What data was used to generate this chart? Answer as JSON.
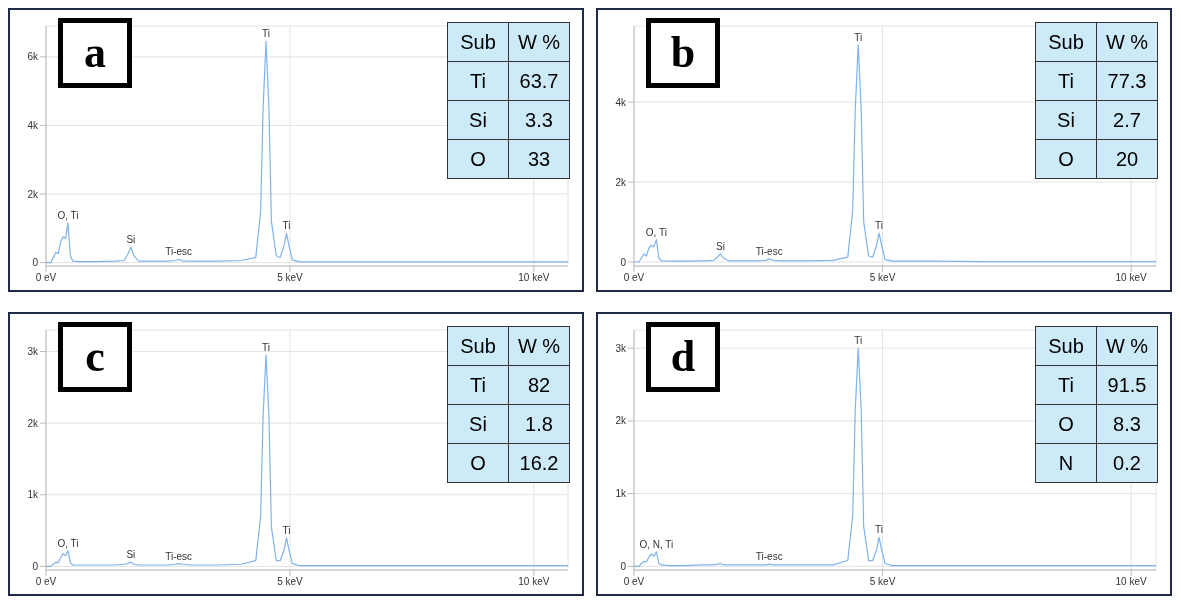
{
  "chart_data": [
    {
      "type": "line",
      "title": "a",
      "x": [
        0,
        0.1,
        0.15,
        0.2,
        0.25,
        0.3,
        0.35,
        0.4,
        0.45,
        0.5,
        0.55,
        0.7,
        1.0,
        1.4,
        1.6,
        1.68,
        1.74,
        1.8,
        1.9,
        2.2,
        2.5,
        2.65,
        2.72,
        2.8,
        3.0,
        3.5,
        4.0,
        4.3,
        4.4,
        4.45,
        4.51,
        4.57,
        4.62,
        4.72,
        4.8,
        4.88,
        4.93,
        4.98,
        5.05,
        5.2,
        6,
        7,
        8,
        9,
        10,
        10.7
      ],
      "series": [
        {
          "color": "#7fb3ea",
          "values": [
            0,
            0,
            150,
            300,
            250,
            600,
            750,
            700,
            1150,
            200,
            40,
            30,
            30,
            40,
            60,
            250,
            450,
            200,
            40,
            40,
            40,
            60,
            90,
            50,
            40,
            40,
            60,
            150,
            1500,
            4500,
            6450,
            4500,
            1200,
            200,
            150,
            500,
            850,
            500,
            80,
            20,
            20,
            20,
            20,
            20,
            20,
            20
          ]
        }
      ],
      "xlim": [
        0,
        10.7
      ],
      "xticks": [
        {
          "value": 0,
          "label": "0 eV"
        },
        {
          "value": 5,
          "label": "5 keV"
        },
        {
          "value": 10,
          "label": "10 keV"
        }
      ],
      "ylim": [
        -100,
        6900
      ],
      "yticks": [
        {
          "value": 0,
          "label": "0"
        },
        {
          "value": 2000,
          "label": "2k"
        },
        {
          "value": 4000,
          "label": "4k"
        },
        {
          "value": 6000,
          "label": "6k"
        }
      ],
      "grid": true,
      "annotations": [
        {
          "text": "O, Ti",
          "x": 0.45,
          "y": 1150
        },
        {
          "text": "Si",
          "x": 1.74,
          "y": 450
        },
        {
          "text": "Ti-esc",
          "x": 2.72,
          "y": 90
        },
        {
          "text": "Ti",
          "x": 4.51,
          "y": 6450
        },
        {
          "text": "Ti",
          "x": 4.93,
          "y": 850
        },
        "Sub",
        "W %",
        "Ti",
        "63.7",
        "Si",
        "3.3",
        "O",
        "33"
      ]
    },
    {
      "type": "line",
      "title": "b",
      "x": [
        0,
        0.1,
        0.15,
        0.2,
        0.25,
        0.3,
        0.35,
        0.4,
        0.45,
        0.5,
        0.55,
        0.7,
        1.0,
        1.4,
        1.6,
        1.68,
        1.74,
        1.8,
        1.9,
        2.2,
        2.5,
        2.65,
        2.72,
        2.8,
        3.0,
        3.5,
        4.0,
        4.3,
        4.4,
        4.45,
        4.51,
        4.57,
        4.62,
        4.72,
        4.8,
        4.88,
        4.93,
        4.98,
        5.05,
        5.2,
        6,
        7,
        8,
        9,
        10,
        10.5
      ],
      "series": [
        {
          "color": "#7fb3ea",
          "values": [
            0,
            0,
            100,
            200,
            150,
            350,
            420,
            380,
            560,
            100,
            30,
            20,
            20,
            30,
            40,
            120,
            200,
            100,
            30,
            30,
            30,
            40,
            80,
            40,
            30,
            30,
            40,
            120,
            1300,
            3800,
            5430,
            3800,
            1000,
            150,
            120,
            420,
            720,
            420,
            60,
            20,
            20,
            10,
            10,
            10,
            10,
            10
          ]
        }
      ],
      "xlim": [
        0,
        10.5
      ],
      "xticks": [
        {
          "value": 0,
          "label": "0 eV"
        },
        {
          "value": 5,
          "label": "5 keV"
        },
        {
          "value": 10,
          "label": "10 keV"
        }
      ],
      "ylim": [
        -100,
        5900
      ],
      "yticks": [
        {
          "value": 0,
          "label": "0"
        },
        {
          "value": 2000,
          "label": "2k"
        },
        {
          "value": 4000,
          "label": "4k"
        }
      ],
      "grid": true,
      "annotations": [
        {
          "text": "O, Ti",
          "x": 0.45,
          "y": 560
        },
        {
          "text": "Si",
          "x": 1.74,
          "y": 200
        },
        {
          "text": "Ti-esc",
          "x": 2.72,
          "y": 80
        },
        {
          "text": "Ti",
          "x": 4.51,
          "y": 5430
        },
        {
          "text": "Ti",
          "x": 4.93,
          "y": 720
        },
        "Sub",
        "W %",
        "Ti",
        "77.3",
        "Si",
        "2.7",
        "O",
        "20"
      ]
    },
    {
      "type": "line",
      "title": "c",
      "x": [
        0,
        0.1,
        0.15,
        0.2,
        0.25,
        0.3,
        0.35,
        0.4,
        0.45,
        0.5,
        0.55,
        0.7,
        1.0,
        1.4,
        1.6,
        1.68,
        1.74,
        1.8,
        1.9,
        2.2,
        2.5,
        2.65,
        2.72,
        2.8,
        3.0,
        3.5,
        4.0,
        4.3,
        4.4,
        4.45,
        4.51,
        4.57,
        4.62,
        4.72,
        4.8,
        4.88,
        4.93,
        4.98,
        5.05,
        5.2,
        6,
        7,
        8,
        9,
        10,
        10.7
      ],
      "series": [
        {
          "color": "#7fb3ea",
          "values": [
            0,
            0,
            30,
            60,
            50,
            120,
            180,
            150,
            220,
            50,
            20,
            20,
            20,
            20,
            30,
            40,
            60,
            30,
            20,
            20,
            20,
            30,
            40,
            30,
            20,
            20,
            30,
            80,
            700,
            2100,
            2950,
            2100,
            550,
            80,
            80,
            230,
            400,
            230,
            40,
            10,
            10,
            10,
            10,
            10,
            10,
            10
          ]
        }
      ],
      "xlim": [
        0,
        10.7
      ],
      "xticks": [
        {
          "value": 0,
          "label": "0 eV"
        },
        {
          "value": 5,
          "label": "5 keV"
        },
        {
          "value": 10,
          "label": "10 keV"
        }
      ],
      "ylim": [
        -50,
        3300
      ],
      "yticks": [
        {
          "value": 0,
          "label": "0"
        },
        {
          "value": 1000,
          "label": "1k"
        },
        {
          "value": 2000,
          "label": "2k"
        },
        {
          "value": 3000,
          "label": "3k"
        }
      ],
      "grid": true,
      "annotations": [
        {
          "text": "O, Ti",
          "x": 0.45,
          "y": 220
        },
        {
          "text": "Si",
          "x": 1.74,
          "y": 60
        },
        {
          "text": "Ti-esc",
          "x": 2.72,
          "y": 40
        },
        {
          "text": "Ti",
          "x": 4.51,
          "y": 2950
        },
        {
          "text": "Ti",
          "x": 4.93,
          "y": 400
        },
        "Sub",
        "W %",
        "Ti",
        "82",
        "Si",
        "1.8",
        "O",
        "16.2"
      ]
    },
    {
      "type": "line",
      "title": "d",
      "x": [
        0,
        0.1,
        0.15,
        0.2,
        0.25,
        0.3,
        0.35,
        0.4,
        0.45,
        0.5,
        0.55,
        0.7,
        1.0,
        1.4,
        1.6,
        1.68,
        1.74,
        1.8,
        1.9,
        2.2,
        2.5,
        2.65,
        2.72,
        2.8,
        3.0,
        3.5,
        4.0,
        4.3,
        4.4,
        4.45,
        4.51,
        4.57,
        4.62,
        4.72,
        4.8,
        4.88,
        4.93,
        4.98,
        5.05,
        5.2,
        6,
        7,
        8,
        9,
        10,
        10.5
      ],
      "series": [
        {
          "color": "#7fb3ea",
          "values": [
            0,
            0,
            40,
            70,
            60,
            130,
            170,
            140,
            200,
            40,
            20,
            10,
            10,
            20,
            20,
            30,
            40,
            20,
            20,
            20,
            20,
            20,
            30,
            20,
            20,
            20,
            20,
            80,
            700,
            2150,
            3000,
            2150,
            550,
            80,
            80,
            230,
            400,
            230,
            40,
            10,
            10,
            10,
            10,
            10,
            10,
            10
          ]
        }
      ],
      "xlim": [
        0,
        10.5
      ],
      "xticks": [
        {
          "value": 0,
          "label": "0 eV"
        },
        {
          "value": 5,
          "label": "5 keV"
        },
        {
          "value": 10,
          "label": "10 keV"
        }
      ],
      "ylim": [
        -50,
        3250
      ],
      "yticks": [
        {
          "value": 0,
          "label": "0"
        },
        {
          "value": 1000,
          "label": "1k"
        },
        {
          "value": 2000,
          "label": "2k"
        },
        {
          "value": 3000,
          "label": "3k"
        }
      ],
      "grid": true,
      "annotations": [
        {
          "text": "O, N, Ti",
          "x": 0.45,
          "y": 200
        },
        {
          "text": "Ti-esc",
          "x": 2.72,
          "y": 30
        },
        {
          "text": "Ti",
          "x": 4.51,
          "y": 3000
        },
        {
          "text": "Ti",
          "x": 4.93,
          "y": 400
        },
        "Sub",
        "W %",
        "Ti",
        "91.5",
        "O",
        "8.3",
        "N",
        "0.2"
      ]
    }
  ]
}
